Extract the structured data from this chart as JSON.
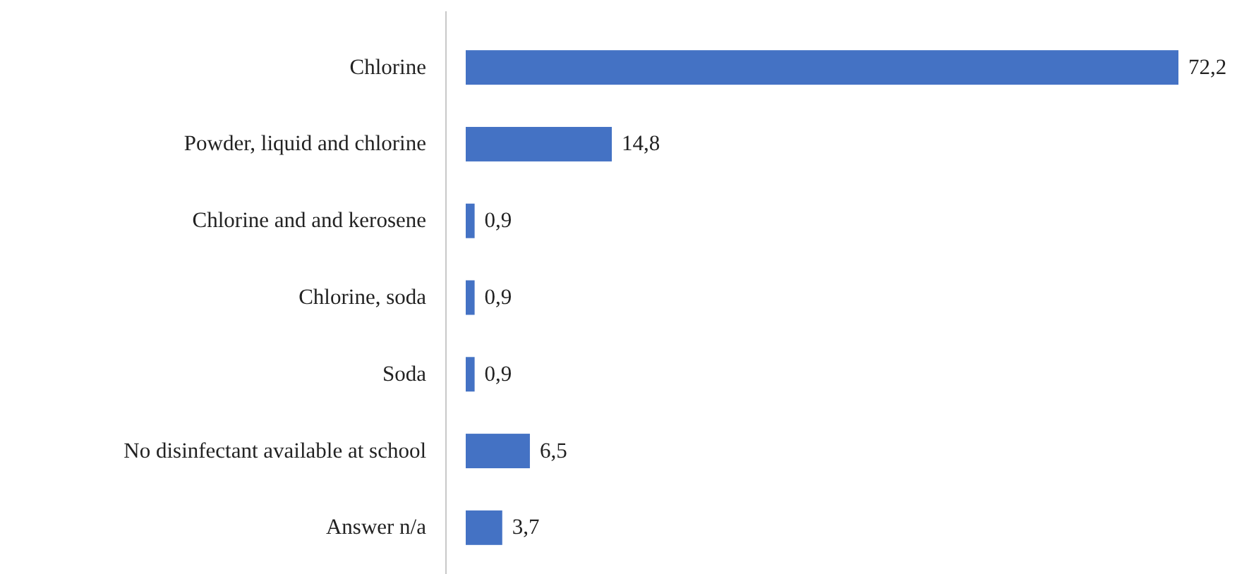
{
  "chart_data": {
    "type": "bar",
    "orientation": "horizontal",
    "categories": [
      "Chlorine",
      "Powder, liquid and chlorine",
      "Chlorine and  and kerosene",
      "Chlorine, soda",
      "Soda",
      "No disinfectant available at school",
      "Answer n/a"
    ],
    "values": [
      72.2,
      14.8,
      0.9,
      0.9,
      0.9,
      6.5,
      3.7
    ],
    "value_labels": [
      "72,2",
      "14,8",
      "0,9",
      "0,9",
      "0,9",
      "6,5",
      "3,7"
    ],
    "color": "#4472c4"
  }
}
